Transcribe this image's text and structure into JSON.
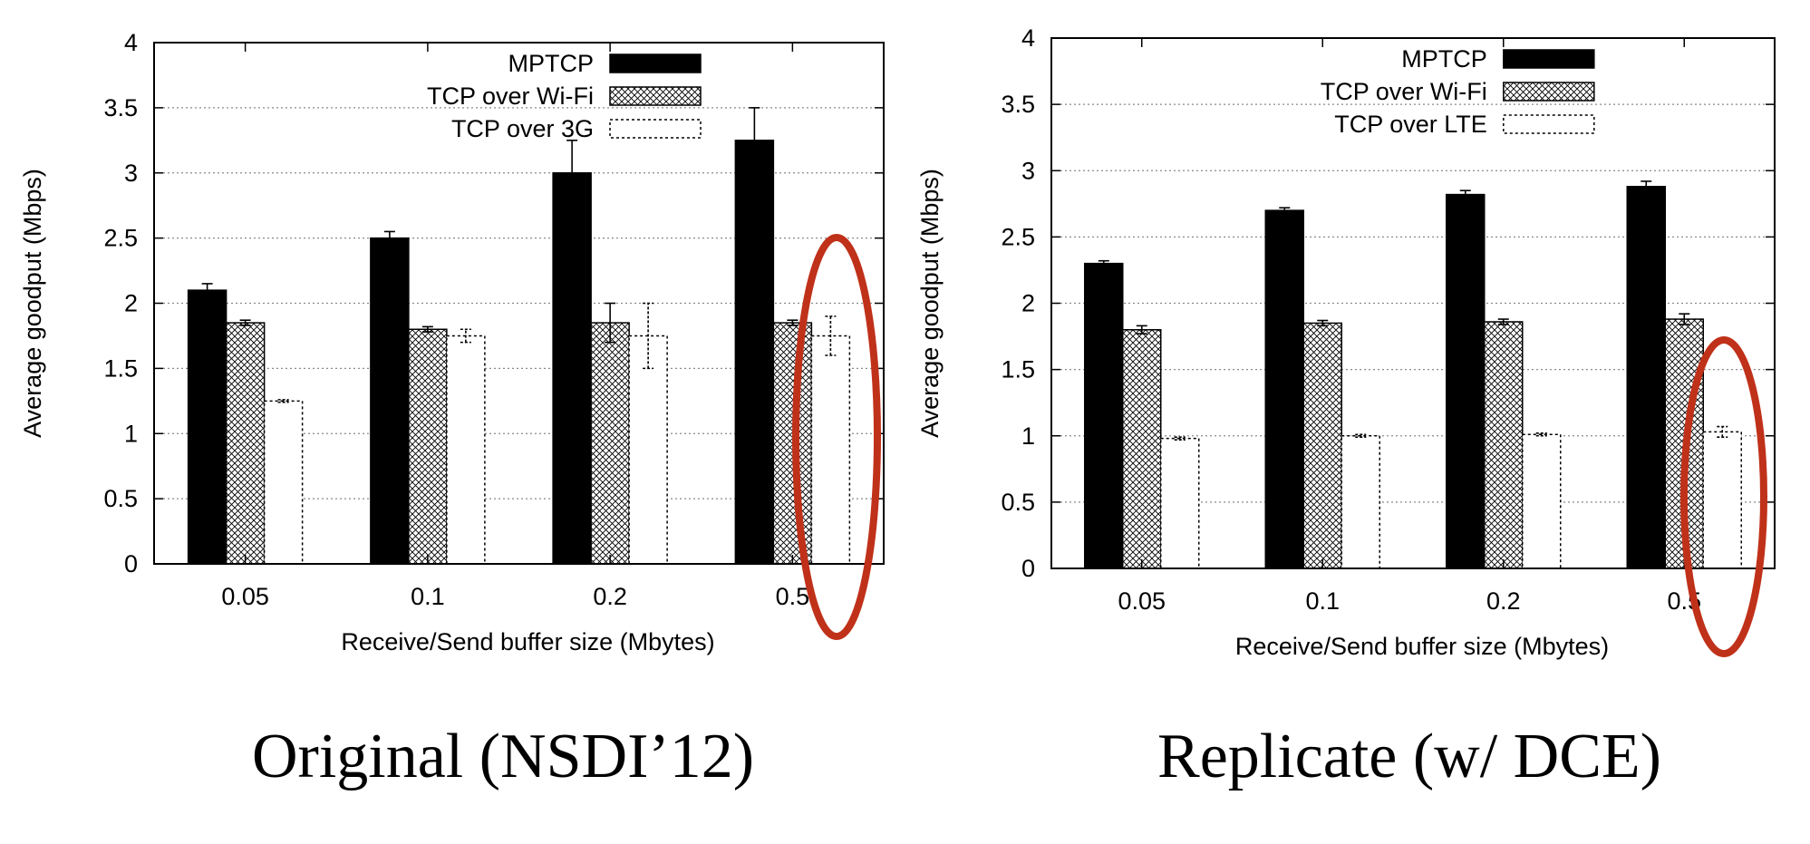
{
  "chart_data": [
    {
      "type": "bar",
      "caption": "Original (NSDI’12)",
      "categories": [
        "0.05",
        "0.1",
        "0.2",
        "0.5"
      ],
      "xlabel": "Receive/Send buffer size (Mbytes)",
      "ylabel": "Average goodput (Mbps)",
      "ylim": [
        0,
        4
      ],
      "yticks": [
        "0",
        "0.5",
        "1",
        "1.5",
        "2",
        "2.5",
        "3",
        "3.5",
        "4"
      ],
      "grid": true,
      "legend_position": "top-right",
      "highlight": "category 0.5, TCP over 3G bar circled in red",
      "series": [
        {
          "name": "MPTCP",
          "fill": "solid",
          "values": [
            2.1,
            2.5,
            3.0,
            3.25
          ],
          "errors": [
            0.05,
            0.05,
            0.25,
            0.25
          ]
        },
        {
          "name": "TCP over Wi-Fi",
          "fill": "crosshatch",
          "values": [
            1.85,
            1.8,
            1.85,
            1.85
          ],
          "errors": [
            0.02,
            0.02,
            0.15,
            0.02
          ]
        },
        {
          "name": "TCP over 3G",
          "fill": "dotted-outline",
          "values": [
            1.25,
            1.75,
            1.75,
            1.75
          ],
          "errors": [
            0.01,
            0.05,
            0.25,
            0.15
          ]
        }
      ]
    },
    {
      "type": "bar",
      "caption": "Replicate (w/ DCE)",
      "categories": [
        "0.05",
        "0.1",
        "0.2",
        "0.5"
      ],
      "xlabel": "Receive/Send buffer size (Mbytes)",
      "ylabel": "Average goodput (Mbps)",
      "ylim": [
        0,
        4
      ],
      "yticks": [
        "0",
        "0.5",
        "1",
        "1.5",
        "2",
        "2.5",
        "3",
        "3.5",
        "4"
      ],
      "grid": true,
      "legend_position": "top-right",
      "highlight": "category 0.5, TCP over LTE bar circled in red",
      "series": [
        {
          "name": "MPTCP",
          "fill": "solid",
          "values": [
            2.3,
            2.7,
            2.82,
            2.88
          ],
          "errors": [
            0.02,
            0.02,
            0.03,
            0.04
          ]
        },
        {
          "name": "TCP over Wi-Fi",
          "fill": "crosshatch",
          "values": [
            1.8,
            1.85,
            1.86,
            1.88
          ],
          "errors": [
            0.03,
            0.02,
            0.02,
            0.04
          ]
        },
        {
          "name": "TCP over LTE",
          "fill": "dotted-outline",
          "values": [
            0.98,
            1.0,
            1.01,
            1.03
          ],
          "errors": [
            0.01,
            0.01,
            0.01,
            0.04
          ]
        }
      ]
    }
  ],
  "colors": {
    "mptcp": "#000000",
    "highlight": "#c0311a",
    "grid": "#8a8a8a"
  }
}
